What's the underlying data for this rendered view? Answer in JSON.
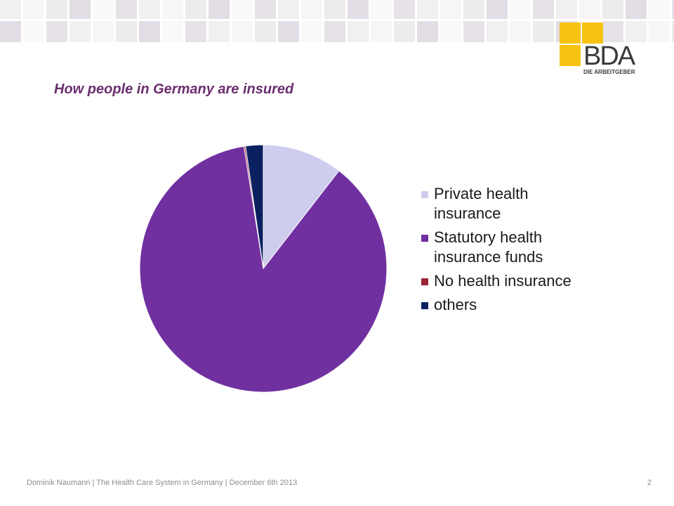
{
  "slide": {
    "title": "How people in Germany are insured"
  },
  "logo": {
    "text": "BDA",
    "subtext": "DIE ARBEITGEBER",
    "color": "#f7c313"
  },
  "decor": {
    "tile_colors": [
      "#f0f0f0",
      "#e6e2e8",
      "#f6f6f6",
      "#e2dce4",
      "#ececec",
      "#faf9fa"
    ]
  },
  "chart_data": {
    "type": "pie",
    "title": "",
    "start_angle_deg": 0,
    "direction": "clockwise",
    "categories": [
      "Private health insurance",
      "Statutory health insurance funds",
      "No health insurance",
      "others"
    ],
    "values": [
      10.5,
      87.0,
      0.2,
      2.3
    ],
    "colors": [
      "#cfcdee",
      "#7030a0",
      "#9b2335",
      "#0b2060"
    ],
    "legend_position": "right"
  },
  "footer": {
    "text": "Dominik Naumann | The Health Care System in Germany | December 6th 2013",
    "page_number": "2"
  }
}
